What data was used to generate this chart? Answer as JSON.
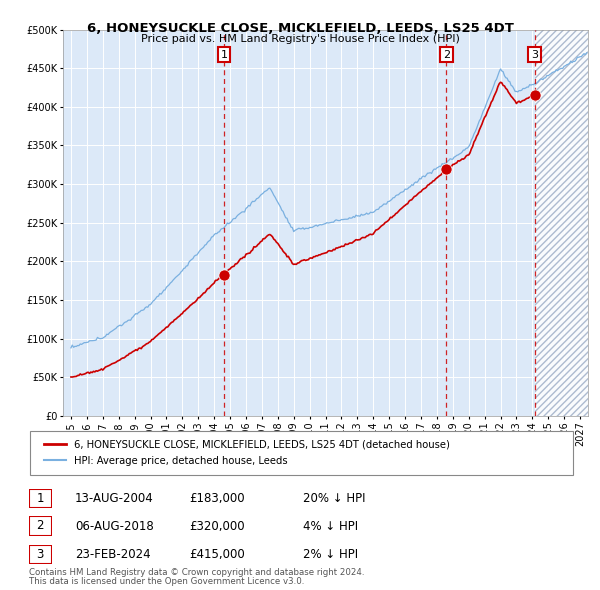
{
  "title_line1": "6, HONEYSUCKLE CLOSE, MICKLEFIELD, LEEDS, LS25 4DT",
  "title_line2": "Price paid vs. HM Land Registry's House Price Index (HPI)",
  "purchases": [
    {
      "num": 1,
      "date_str": "13-AUG-2004",
      "price": 183000,
      "year": 2004.617,
      "hpi_pct": "20% ↓ HPI"
    },
    {
      "num": 2,
      "date_str": "06-AUG-2018",
      "price": 320000,
      "year": 2018.596,
      "hpi_pct": "4% ↓ HPI"
    },
    {
      "num": 3,
      "date_str": "23-FEB-2024",
      "price": 415000,
      "year": 2024.145,
      "hpi_pct": "2% ↓ HPI"
    }
  ],
  "legend_label1": "6, HONEYSUCKLE CLOSE, MICKLEFIELD, LEEDS, LS25 4DT (detached house)",
  "legend_label2": "HPI: Average price, detached house, Leeds",
  "footer1": "Contains HM Land Registry data © Crown copyright and database right 2024.",
  "footer2": "This data is licensed under the Open Government Licence v3.0.",
  "plot_bg": "#dce9f8",
  "hpi_line_color": "#7ab0e0",
  "price_line_color": "#cc0000",
  "dashed_line_color": "#cc0000",
  "ylim_min": 0,
  "ylim_max": 500000,
  "xmin": 1994.5,
  "xmax": 2027.5,
  "future_start": 2024.145
}
